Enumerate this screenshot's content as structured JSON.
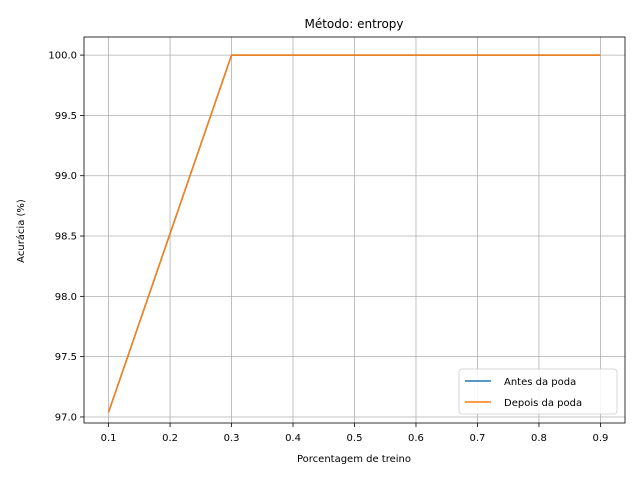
{
  "chart_data": {
    "type": "line",
    "title": "Método: entropy",
    "xlabel": "Porcentagem de treino",
    "ylabel": "Acurácia (%)",
    "x": [
      0.1,
      0.2,
      0.3,
      0.4,
      0.5,
      0.6,
      0.7,
      0.8,
      0.9
    ],
    "xticks": [
      "0.1",
      "0.2",
      "0.3",
      "0.4",
      "0.5",
      "0.6",
      "0.7",
      "0.8",
      "0.9"
    ],
    "yticks": [
      "97.0",
      "97.5",
      "98.0",
      "98.5",
      "99.0",
      "99.5",
      "100.0"
    ],
    "xlim": [
      0.06,
      0.94
    ],
    "ylim": [
      96.95,
      100.15
    ],
    "grid": true,
    "legend_position": "lower right",
    "series": [
      {
        "name": "Antes da poda",
        "color": "#1f77b4",
        "values": [
          97.04,
          98.52,
          100.0,
          100.0,
          100.0,
          100.0,
          100.0,
          100.0,
          100.0
        ]
      },
      {
        "name": "Depois da poda",
        "color": "#ff7f0e",
        "values": [
          97.04,
          98.52,
          100.0,
          100.0,
          100.0,
          100.0,
          100.0,
          100.0,
          100.0
        ]
      }
    ]
  }
}
